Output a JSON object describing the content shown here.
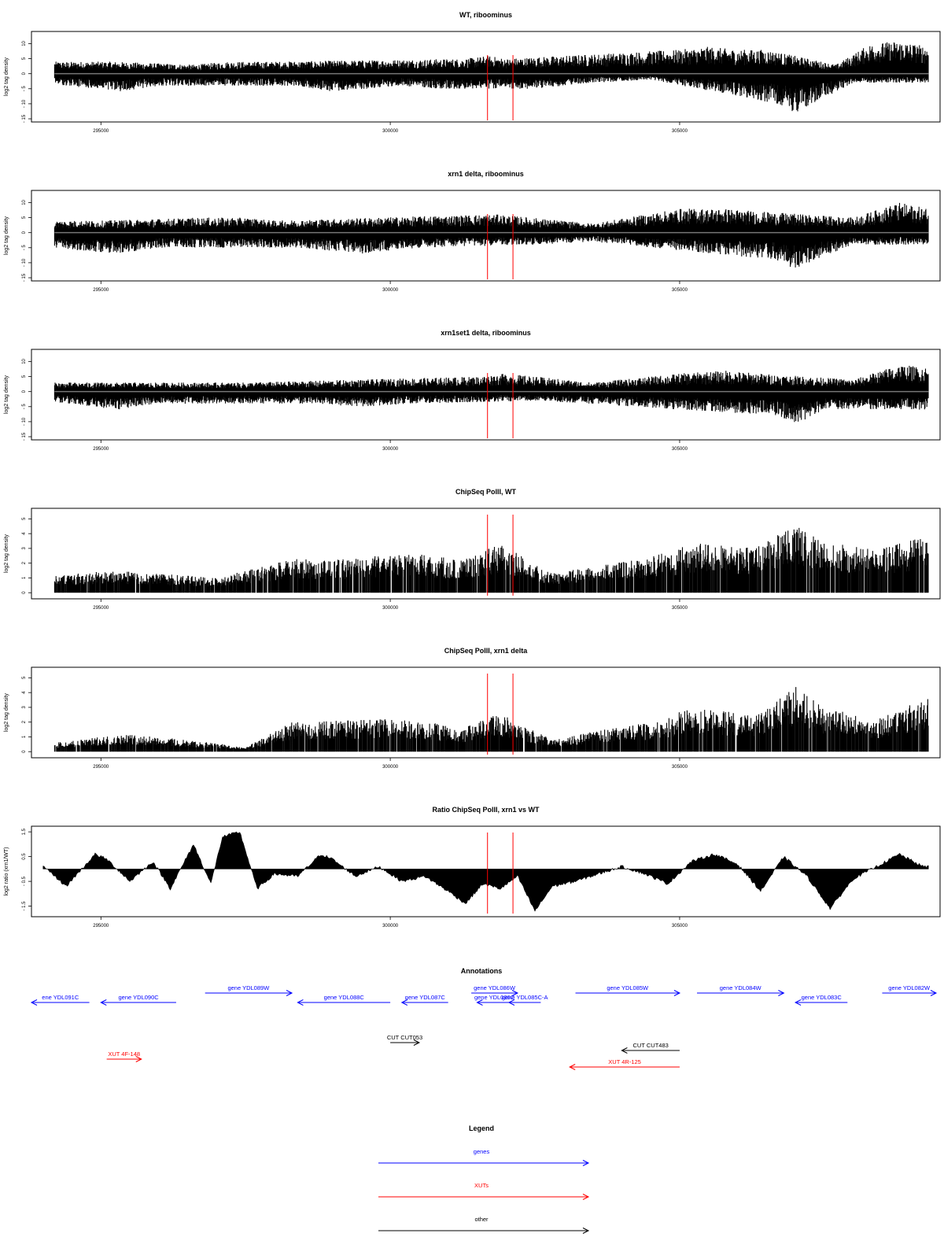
{
  "chart_data": [
    {
      "type": "bar",
      "title": "WT, riboominus",
      "ylabel": "log2 tag density",
      "ylim": [
        -15,
        13
      ],
      "yticks": [
        "10",
        "5",
        "0",
        "- 5",
        "- 10",
        "- 15"
      ],
      "xlim": [
        293800,
        309500
      ],
      "xticks": [
        "295000",
        "300000",
        "305000"
      ],
      "markers_x": [
        301680,
        302120
      ],
      "series": [
        {
          "strand": "+",
          "values": [
            [
              295200,
              4
            ],
            [
              296600,
              3
            ],
            [
              297200,
              4
            ],
            [
              297900,
              4
            ],
            [
              301300,
              5
            ],
            [
              301700,
              6
            ],
            [
              302000,
              5
            ],
            [
              305000,
              8
            ],
            [
              305500,
              9
            ],
            [
              306000,
              8
            ],
            [
              306500,
              8
            ],
            [
              307700,
              3
            ],
            [
              308300,
              10
            ],
            [
              308800,
              11
            ],
            [
              309300,
              9
            ]
          ]
        },
        {
          "strand": "-",
          "values": [
            [
              294000,
              -3
            ],
            [
              295300,
              -6
            ],
            [
              296000,
              -4
            ],
            [
              298400,
              -4
            ],
            [
              299000,
              -6
            ],
            [
              300200,
              -4
            ],
            [
              300800,
              -5
            ],
            [
              302500,
              -5
            ],
            [
              303500,
              -3
            ],
            [
              304500,
              -2
            ],
            [
              306700,
              -10
            ],
            [
              307000,
              -13
            ],
            [
              307500,
              -8
            ],
            [
              308000,
              -3
            ]
          ]
        }
      ]
    },
    {
      "type": "bar",
      "title": "xrn1 delta, riboominus",
      "ylabel": "log2 tag density",
      "ylim": [
        -15,
        13
      ],
      "yticks": [
        "10",
        "5",
        "0",
        "- 5",
        "- 10",
        "- 15"
      ],
      "xlim": [
        293800,
        309500
      ],
      "xticks": [
        "295000",
        "300000",
        "305000"
      ],
      "markers_x": [
        301680,
        302120
      ],
      "series": [
        {
          "strand": "+",
          "values": [
            [
              295000,
              4
            ],
            [
              296700,
              5
            ],
            [
              297500,
              5
            ],
            [
              298000,
              4
            ],
            [
              301500,
              6
            ],
            [
              301900,
              6
            ],
            [
              303500,
              3
            ],
            [
              305000,
              8
            ],
            [
              305800,
              8
            ],
            [
              306400,
              7
            ],
            [
              308000,
              5
            ],
            [
              308800,
              10
            ],
            [
              309300,
              8
            ]
          ]
        },
        {
          "strand": "-",
          "values": [
            [
              294000,
              -5
            ],
            [
              295300,
              -7
            ],
            [
              296000,
              -5
            ],
            [
              298400,
              -5
            ],
            [
              299500,
              -7
            ],
            [
              300500,
              -5
            ],
            [
              302500,
              -4
            ],
            [
              303500,
              -3
            ],
            [
              306600,
              -9
            ],
            [
              307000,
              -12
            ],
            [
              307500,
              -8
            ],
            [
              308000,
              -4
            ]
          ]
        }
      ]
    },
    {
      "type": "bar",
      "title": "xrn1set1 delta, riboominus",
      "ylabel": "log2 tag density",
      "ylim": [
        -15,
        13
      ],
      "yticks": [
        "10",
        "5",
        "0",
        "- 5",
        "- 10",
        "- 15"
      ],
      "xlim": [
        293800,
        309500
      ],
      "xticks": [
        "295000",
        "300000",
        "305000"
      ],
      "markers_x": [
        301680,
        302120
      ],
      "series": [
        {
          "strand": "+",
          "values": [
            [
              295000,
              3
            ],
            [
              296700,
              3
            ],
            [
              297500,
              3
            ],
            [
              301500,
              5
            ],
            [
              302000,
              6
            ],
            [
              303500,
              3
            ],
            [
              305000,
              6
            ],
            [
              305800,
              7
            ],
            [
              306400,
              6
            ],
            [
              308000,
              4
            ],
            [
              308800,
              9
            ],
            [
              309300,
              8
            ]
          ]
        },
        {
          "strand": "-",
          "values": [
            [
              294000,
              -3
            ],
            [
              295300,
              -6
            ],
            [
              296000,
              -4
            ],
            [
              298500,
              -4
            ],
            [
              299500,
              -5
            ],
            [
              300500,
              -4
            ],
            [
              302500,
              -3
            ],
            [
              306700,
              -8
            ],
            [
              307000,
              -11
            ],
            [
              307500,
              -6
            ]
          ]
        }
      ]
    },
    {
      "type": "bar",
      "title": "ChipSeq PolII, WT",
      "ylabel": "log2 tag density",
      "ylim": [
        -0.2,
        5.5
      ],
      "yticks": [
        "5",
        "4",
        "3",
        "2",
        "1",
        "0"
      ],
      "xlim": [
        293800,
        309500
      ],
      "xticks": [
        "295000",
        "300000",
        "305000"
      ],
      "markers_x": [
        301680,
        302120
      ],
      "series": [
        {
          "values": [
            [
              294200,
              1.2
            ],
            [
              295200,
              1.5
            ],
            [
              296000,
              1.3
            ],
            [
              297000,
              1
            ],
            [
              298300,
              2.3
            ],
            [
              299000,
              2.2
            ],
            [
              299800,
              2.5
            ],
            [
              300600,
              2.6
            ],
            [
              301200,
              2.2
            ],
            [
              301900,
              3.3
            ],
            [
              302800,
              1.3
            ],
            [
              303800,
              2
            ],
            [
              304400,
              2.3
            ],
            [
              305300,
              3.4
            ],
            [
              306300,
              3
            ],
            [
              307000,
              4.6
            ],
            [
              307500,
              3.4
            ],
            [
              308400,
              3
            ],
            [
              309200,
              3.8
            ]
          ]
        }
      ]
    },
    {
      "type": "bar",
      "title": "ChipSeq PolII, xrn1 delta",
      "ylabel": "log2 tag density",
      "ylim": [
        -0.2,
        5.5
      ],
      "yticks": [
        "5",
        "4",
        "3",
        "2",
        "1",
        "0"
      ],
      "xlim": [
        293800,
        309500
      ],
      "xticks": [
        "295000",
        "300000",
        "305000"
      ],
      "markers_x": [
        301680,
        302120
      ],
      "series": [
        {
          "values": [
            [
              294200,
              0.6
            ],
            [
              295400,
              1.2
            ],
            [
              296500,
              0.8
            ],
            [
              297500,
              0.3
            ],
            [
              298300,
              2
            ],
            [
              299000,
              2.1
            ],
            [
              299800,
              2.2
            ],
            [
              300600,
              2.1
            ],
            [
              301200,
              1.5
            ],
            [
              301900,
              2.6
            ],
            [
              302800,
              0.8
            ],
            [
              303800,
              1.6
            ],
            [
              304500,
              2
            ],
            [
              305300,
              3.1
            ],
            [
              306300,
              2.4
            ],
            [
              307000,
              4.4
            ],
            [
              307500,
              3
            ],
            [
              308400,
              2.2
            ],
            [
              309200,
              3.6
            ]
          ]
        }
      ]
    },
    {
      "type": "area",
      "title": "Ratio ChipSeq PolII, xrn1 vs WT",
      "ylabel": "log2 ratio (xrn1/WT)",
      "ylim": [
        -1.8,
        1.6
      ],
      "yticks": [
        "1.5",
        "0.5",
        "- 0.5",
        "- 1.5"
      ],
      "xlim": [
        293800,
        309500
      ],
      "xticks": [
        "295000",
        "300000",
        "305000"
      ],
      "markers_x": [
        301680,
        302120
      ],
      "x": [
        294000,
        294400,
        294900,
        295100,
        295500,
        295900,
        296200,
        296600,
        296900,
        297100,
        297400,
        297700,
        298000,
        298400,
        298800,
        299000,
        299400,
        299800,
        300200,
        300600,
        301000,
        301300,
        301600,
        301900,
        302200,
        302500,
        302800,
        303200,
        303600,
        304000,
        304400,
        304800,
        305200,
        305600,
        306000,
        306400,
        306800,
        307200,
        307600,
        308000,
        308400,
        308800,
        309200
      ],
      "values": [
        0.1,
        -0.7,
        0.6,
        0.4,
        -0.5,
        0.3,
        -0.8,
        1.0,
        -0.6,
        1.3,
        1.5,
        -0.8,
        -0.2,
        -0.3,
        0.6,
        0.4,
        -0.3,
        0.1,
        -0.5,
        -0.3,
        -0.9,
        -1.4,
        -0.6,
        -0.8,
        -0.3,
        -1.7,
        -0.7,
        -0.5,
        -0.2,
        0.1,
        -0.2,
        -0.6,
        0.3,
        0.6,
        0.2,
        -0.9,
        0.5,
        -0.3,
        -1.6,
        -0.4,
        0.1,
        0.6,
        0.1
      ]
    }
  ],
  "annotations": {
    "title": "Annotations",
    "items": [
      {
        "label": "ene YDL091C",
        "kind": "genes",
        "x1": 293800,
        "x2": 294800,
        "dir": "-",
        "row": 1
      },
      {
        "label": "gene YDL090C",
        "kind": "genes",
        "x1": 295000,
        "x2": 296300,
        "dir": "-",
        "row": 1
      },
      {
        "label": "gene YDL089W",
        "kind": "genes",
        "x1": 296800,
        "x2": 298300,
        "dir": "+",
        "row": 0
      },
      {
        "label": "gene YDL088C",
        "kind": "genes",
        "x1": 298400,
        "x2": 300000,
        "dir": "-",
        "row": 1
      },
      {
        "label": "gene YDL087C",
        "kind": "genes",
        "x1": 300200,
        "x2": 301000,
        "dir": "-",
        "row": 1
      },
      {
        "label": "gene YDL086W",
        "kind": "genes",
        "x1": 301400,
        "x2": 302200,
        "dir": "+",
        "row": 0
      },
      {
        "label": "gene YDL086C",
        "kind": "genes",
        "x1": 301500,
        "x2": 302100,
        "dir": "-",
        "row": 1
      },
      {
        "label": "gene YDL085C-A",
        "kind": "genes",
        "x1": 302050,
        "x2": 302600,
        "dir": "-",
        "row": 1
      },
      {
        "label": "gene YDL085W",
        "kind": "genes",
        "x1": 303200,
        "x2": 305000,
        "dir": "+",
        "row": 0
      },
      {
        "label": "gene YDL084W",
        "kind": "genes",
        "x1": 305300,
        "x2": 306800,
        "dir": "+",
        "row": 0
      },
      {
        "label": "gene YDL083C",
        "kind": "genes",
        "x1": 307000,
        "x2": 307900,
        "dir": "-",
        "row": 1
      },
      {
        "label": "gene YDL082W",
        "kind": "genes",
        "x1": 308500,
        "x2": 309500,
        "dir": "+",
        "row": 0
      },
      {
        "label": "CUT CUT053",
        "kind": "other",
        "x1": 300000,
        "x2": 300500,
        "dir": "+",
        "row": 3
      },
      {
        "label": "CUT CUT483",
        "kind": "other",
        "x1": 304000,
        "x2": 305000,
        "dir": "-",
        "row": 4
      },
      {
        "label": "XUT 4F-148",
        "kind": "XUTs",
        "x1": 295100,
        "x2": 295700,
        "dir": "+",
        "row": 5
      },
      {
        "label": "XUT 4R-125",
        "kind": "XUTs",
        "x1": 303100,
        "x2": 305000,
        "dir": "-",
        "row": 6
      }
    ]
  },
  "legend": {
    "title": "Legend",
    "entries": [
      {
        "label": "genes",
        "color": "#0000ff"
      },
      {
        "label": "XUTs",
        "color": "#ff0000"
      },
      {
        "label": "other",
        "color": "#000000"
      }
    ]
  }
}
